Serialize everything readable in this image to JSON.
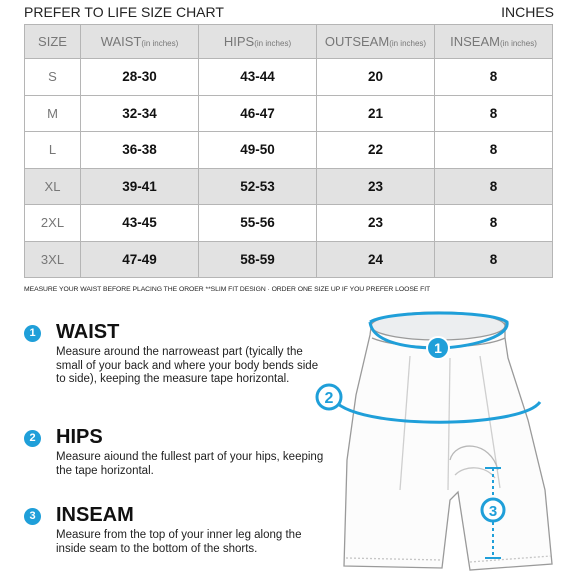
{
  "header": {
    "title": "PREFER TO LIFE SIZE CHART",
    "units": "INCHES"
  },
  "table": {
    "columns": [
      {
        "label": "SIZE",
        "sub": ""
      },
      {
        "label": "WAIST",
        "sub": "(in inches)"
      },
      {
        "label": "HIPS",
        "sub": "(in inches)"
      },
      {
        "label": "OUTSEAM",
        "sub": "(in inches)"
      },
      {
        "label": "INSEAM",
        "sub": "(in inches)"
      }
    ],
    "rows": [
      [
        "S",
        "28-30",
        "43-44",
        "20",
        "8"
      ],
      [
        "M",
        "32-34",
        "46-47",
        "21",
        "8"
      ],
      [
        "L",
        "36-38",
        "49-50",
        "22",
        "8"
      ],
      [
        "XL",
        "39-41",
        "52-53",
        "23",
        "8"
      ],
      [
        "2XL",
        "43-45",
        "55-56",
        "23",
        "8"
      ],
      [
        "3XL",
        "47-49",
        "58-59",
        "24",
        "8"
      ]
    ]
  },
  "note": "MEASURE YOUR WAIST BEFORE PLACING THE OROER  **SLIM FIT DESIGN · ORDER ONE SIZE UP IF YOU PREFER LOOSE FIT",
  "sections": [
    {
      "number": "1",
      "title": "WAIST",
      "text": "Measure around the narroweast part (tyically the small of your back and where your body bends side to side), keeping the measure tape horizontal."
    },
    {
      "number": "2",
      "title": "HIPS",
      "text": "Measure aiound the fullest part of your hips, keeping the tape horizontal."
    },
    {
      "number": "3",
      "title": "INSEAM",
      "text": "Measure from the top of your inner leg along the inside seam to the bottom of the shorts."
    }
  ],
  "diagram": {
    "marker_1": "1",
    "marker_2": "2",
    "marker_3": "3"
  },
  "colors": {
    "accent": "#1f9fd9",
    "shade": "#e2e2e2",
    "grid": "#b5b5b5"
  }
}
